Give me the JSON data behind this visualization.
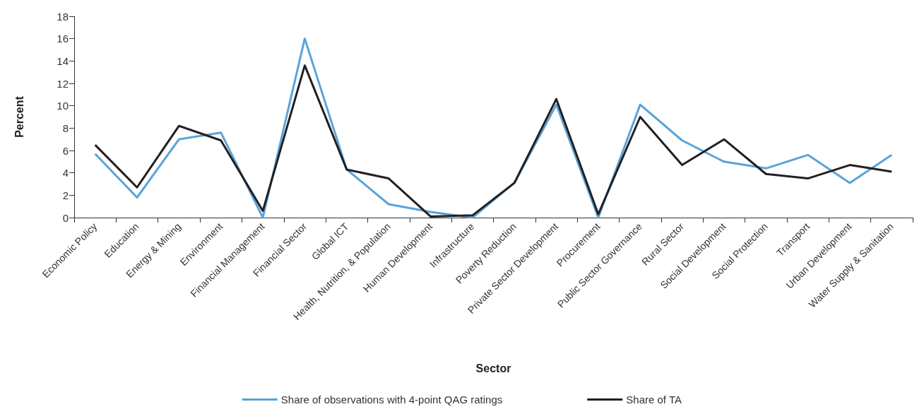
{
  "chart_data": {
    "type": "line",
    "xlabel": "Sector",
    "ylabel": "Percent",
    "categories": [
      "Economic Policy",
      "Education",
      "Energy & Mining",
      "Environment",
      "Financial Management",
      "Financial Sector",
      "Global ICT",
      "Health, Nutrition, & Population",
      "Human Development",
      "Infrastructure",
      "Poverty Reduction",
      "Private Sector Development",
      "Procurement",
      "Public Sector Governance",
      "Rural Sector",
      "Social Development",
      "Social Protection",
      "Transport",
      "Urban Development",
      "Water Supply & Sanitation"
    ],
    "series": [
      {
        "name": "Share of observations with 4-point QAG ratings",
        "color": "#5aa3d8",
        "values": [
          5.7,
          1.8,
          7.0,
          7.6,
          0,
          16.0,
          4.3,
          1.2,
          0.5,
          0,
          3.1,
          10.1,
          0,
          10.1,
          6.9,
          5.0,
          4.4,
          5.6,
          3.1,
          5.6
        ]
      },
      {
        "name": "Share of TA",
        "color": "#231f20",
        "values": [
          6.5,
          2.7,
          8.2,
          6.9,
          0.6,
          13.6,
          4.3,
          3.5,
          0.1,
          0.2,
          3.1,
          10.6,
          0.3,
          9.0,
          4.7,
          7.0,
          3.9,
          3.5,
          4.7,
          4.1
        ]
      }
    ],
    "ylim": [
      0,
      18
    ],
    "yticks": [
      0,
      2,
      4,
      6,
      8,
      10,
      12,
      14,
      16,
      18
    ],
    "grid": false,
    "legend": "bottom",
    "marker": "none",
    "line_style": "solid"
  }
}
